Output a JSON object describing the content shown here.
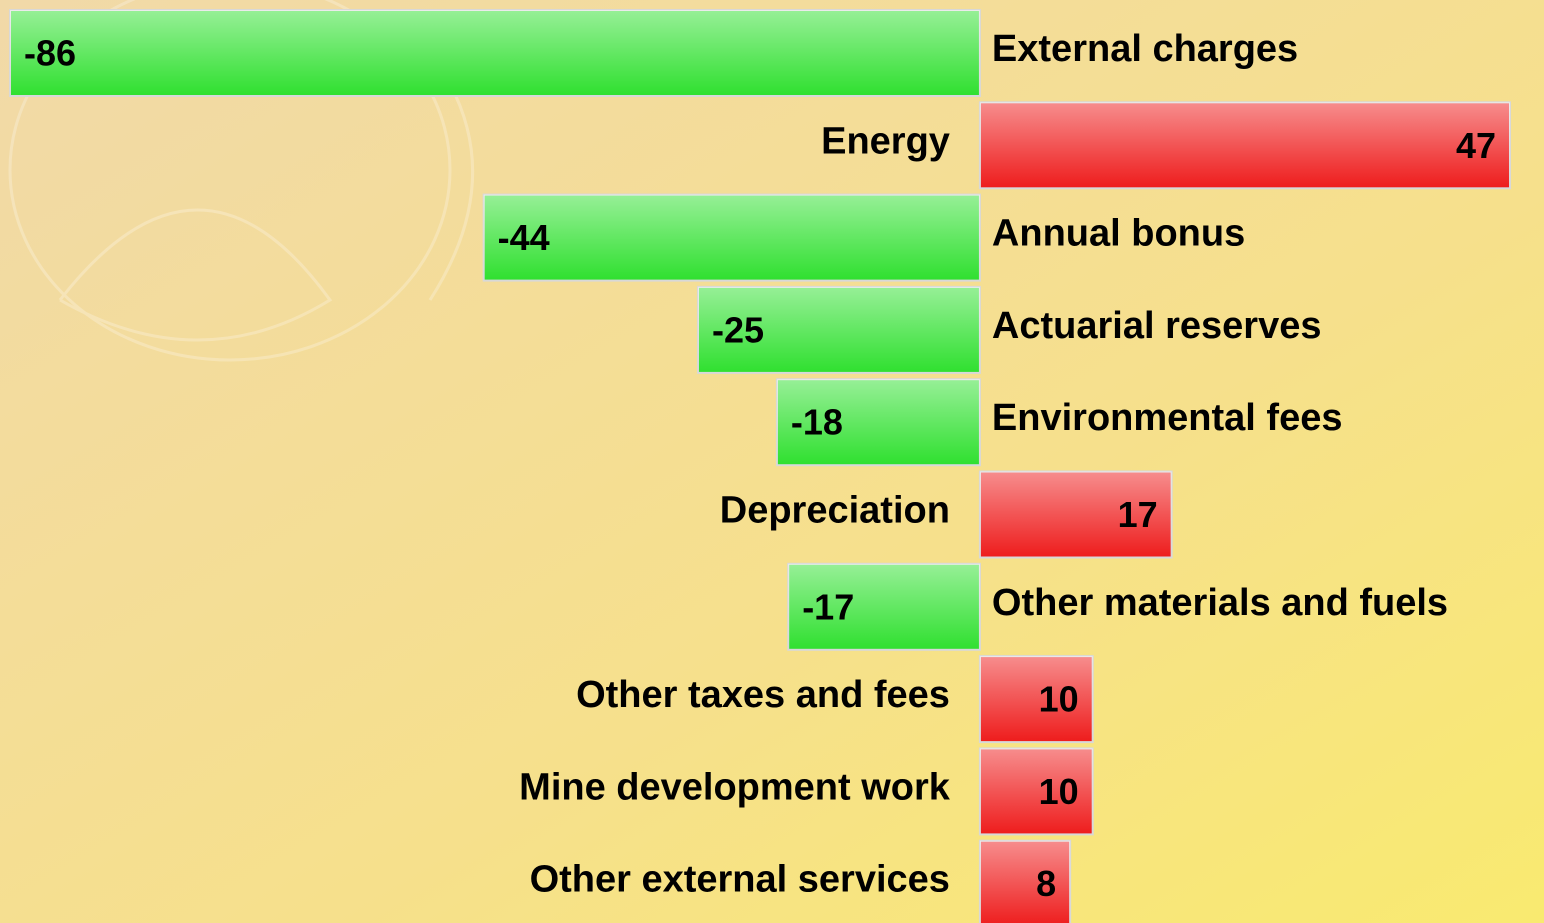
{
  "chart_data": {
    "type": "bar",
    "orientation": "horizontal",
    "categories": [
      "External charges",
      "Energy",
      "Annual bonus",
      "Actuarial reserves",
      "Environmental fees",
      "Depreciation",
      "Other materials and fuels",
      "Other taxes and fees",
      "Mine development work",
      "Other external services"
    ],
    "values": [
      -86,
      47,
      -44,
      -25,
      -18,
      17,
      -17,
      10,
      10,
      8
    ],
    "color_negative": "#2fe02f",
    "color_positive": "#ee1c1c"
  }
}
